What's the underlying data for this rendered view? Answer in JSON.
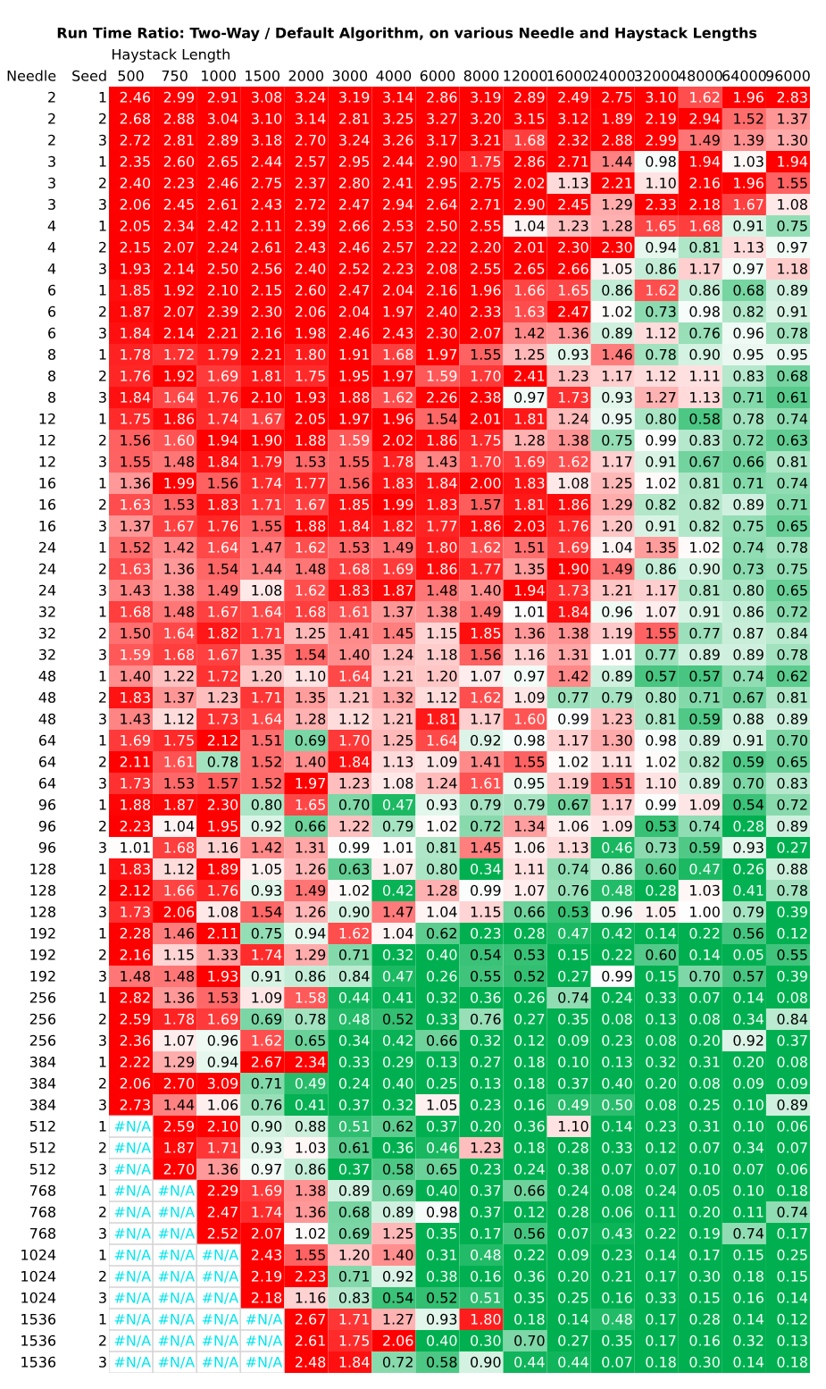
{
  "chart_data": {
    "type": "heatmap",
    "title": "Run Time Ratio: Two-Way / Default Algorithm, on various Needle and Haystack Lengths",
    "xlabel": "Haystack Length",
    "ylabel": "Needle",
    "y2label": "Seed",
    "categories": [
      "500",
      "750",
      "1000",
      "1500",
      "2000",
      "3000",
      "4000",
      "6000",
      "8000",
      "12000",
      "16000",
      "24000",
      "32000",
      "48000",
      "64000",
      "96000"
    ],
    "y_categories": [
      "2",
      "2",
      "2",
      "3",
      "3",
      "3",
      "4",
      "4",
      "4",
      "6",
      "6",
      "6",
      "8",
      "8",
      "8",
      "12",
      "12",
      "12",
      "16",
      "16",
      "16",
      "24",
      "24",
      "24",
      "32",
      "32",
      "32",
      "48",
      "48",
      "48",
      "64",
      "64",
      "64",
      "96",
      "96",
      "96",
      "128",
      "128",
      "128",
      "192",
      "192",
      "192",
      "256",
      "256",
      "256",
      "384",
      "384",
      "384",
      "512",
      "512",
      "512",
      "768",
      "768",
      "768",
      "1024",
      "1024",
      "1024",
      "1536",
      "1536",
      "1536"
    ],
    "y2_categories": [
      "1",
      "2",
      "3",
      "1",
      "2",
      "3",
      "1",
      "2",
      "3",
      "1",
      "2",
      "3",
      "1",
      "2",
      "3",
      "1",
      "2",
      "3",
      "1",
      "2",
      "3",
      "1",
      "2",
      "3",
      "1",
      "2",
      "3",
      "1",
      "2",
      "3",
      "1",
      "2",
      "3",
      "1",
      "2",
      "3",
      "1",
      "2",
      "3",
      "1",
      "2",
      "3",
      "1",
      "2",
      "3",
      "1",
      "2",
      "3",
      "1",
      "2",
      "3",
      "1",
      "2",
      "3",
      "1",
      "2",
      "3",
      "1",
      "2",
      "3"
    ],
    "cells": [
      [
        2.46,
        2.99,
        2.91,
        3.08,
        3.24,
        3.19,
        3.14,
        2.86,
        3.19,
        2.89,
        2.49,
        2.75,
        3.1,
        1.62,
        1.96,
        2.83
      ],
      [
        2.68,
        2.88,
        3.04,
        3.1,
        3.14,
        2.81,
        3.25,
        3.27,
        3.2,
        3.15,
        3.12,
        1.89,
        2.19,
        2.94,
        1.52,
        1.37
      ],
      [
        2.72,
        2.81,
        2.89,
        3.18,
        2.7,
        3.24,
        3.26,
        3.17,
        3.21,
        1.68,
        2.32,
        2.88,
        2.99,
        1.49,
        1.39,
        1.3
      ],
      [
        2.35,
        2.6,
        2.65,
        2.44,
        2.57,
        2.95,
        2.44,
        2.9,
        1.75,
        2.86,
        2.71,
        1.44,
        0.98,
        1.94,
        1.03,
        1.94
      ],
      [
        2.4,
        2.23,
        2.46,
        2.75,
        2.37,
        2.8,
        2.41,
        2.95,
        2.75,
        2.02,
        1.13,
        2.21,
        1.1,
        2.16,
        1.96,
        1.55
      ],
      [
        2.06,
        2.45,
        2.61,
        2.43,
        2.72,
        2.47,
        2.94,
        2.64,
        2.71,
        2.9,
        2.45,
        1.29,
        2.33,
        2.18,
        1.67,
        1.08
      ],
      [
        2.05,
        2.34,
        2.42,
        2.11,
        2.39,
        2.66,
        2.53,
        2.5,
        2.55,
        1.04,
        1.23,
        1.28,
        1.65,
        1.68,
        0.91,
        0.75
      ],
      [
        2.15,
        2.07,
        2.24,
        2.61,
        2.43,
        2.46,
        2.57,
        2.22,
        2.2,
        2.01,
        2.3,
        2.3,
        0.94,
        0.81,
        1.13,
        0.97
      ],
      [
        1.93,
        2.14,
        2.5,
        2.56,
        2.4,
        2.52,
        2.23,
        2.08,
        2.55,
        2.65,
        2.66,
        1.05,
        0.86,
        1.17,
        0.97,
        1.18
      ],
      [
        1.85,
        1.92,
        2.1,
        2.15,
        2.6,
        2.47,
        2.04,
        2.16,
        1.96,
        1.66,
        1.65,
        0.86,
        1.62,
        0.86,
        0.68,
        0.89
      ],
      [
        1.87,
        2.07,
        2.39,
        2.3,
        2.06,
        2.04,
        1.97,
        2.4,
        2.33,
        1.63,
        2.47,
        1.02,
        0.73,
        0.98,
        0.82,
        0.91
      ],
      [
        1.84,
        2.14,
        2.21,
        2.16,
        1.98,
        2.46,
        2.43,
        2.3,
        2.07,
        1.42,
        1.36,
        0.89,
        1.12,
        0.76,
        0.96,
        0.78
      ],
      [
        1.78,
        1.72,
        1.79,
        2.21,
        1.8,
        1.91,
        1.68,
        1.97,
        1.55,
        1.25,
        0.93,
        1.46,
        0.78,
        0.9,
        0.95,
        0.95
      ],
      [
        1.76,
        1.92,
        1.69,
        1.81,
        1.75,
        1.95,
        1.97,
        1.59,
        1.7,
        2.41,
        1.23,
        1.17,
        1.12,
        1.11,
        0.83,
        0.68
      ],
      [
        1.84,
        1.64,
        1.76,
        2.1,
        1.93,
        1.88,
        1.62,
        2.26,
        2.38,
        0.97,
        1.73,
        0.93,
        1.27,
        1.13,
        0.71,
        0.61
      ],
      [
        1.75,
        1.86,
        1.74,
        1.67,
        2.05,
        1.97,
        1.96,
        1.54,
        2.01,
        1.81,
        1.24,
        0.95,
        0.8,
        0.58,
        0.78,
        0.74
      ],
      [
        1.56,
        1.6,
        1.94,
        1.9,
        1.88,
        1.59,
        2.02,
        1.86,
        1.75,
        1.28,
        1.38,
        0.75,
        0.99,
        0.83,
        0.72,
        0.63
      ],
      [
        1.55,
        1.48,
        1.84,
        1.79,
        1.53,
        1.55,
        1.78,
        1.43,
        1.7,
        1.69,
        1.62,
        1.17,
        0.91,
        0.67,
        0.66,
        0.81
      ],
      [
        1.36,
        1.99,
        1.56,
        1.74,
        1.77,
        1.56,
        1.83,
        1.84,
        2.0,
        1.83,
        1.08,
        1.25,
        1.02,
        0.81,
        0.71,
        0.74
      ],
      [
        1.63,
        1.53,
        1.83,
        1.71,
        1.67,
        1.85,
        1.99,
        1.83,
        1.57,
        1.81,
        1.86,
        1.29,
        0.82,
        0.82,
        0.89,
        0.71
      ],
      [
        1.37,
        1.67,
        1.76,
        1.55,
        1.88,
        1.84,
        1.82,
        1.77,
        1.86,
        2.03,
        1.76,
        1.2,
        0.91,
        0.82,
        0.75,
        0.65
      ],
      [
        1.52,
        1.42,
        1.64,
        1.47,
        1.62,
        1.53,
        1.49,
        1.8,
        1.62,
        1.51,
        1.69,
        1.04,
        1.35,
        1.02,
        0.74,
        0.78
      ],
      [
        1.63,
        1.36,
        1.54,
        1.44,
        1.48,
        1.68,
        1.69,
        1.86,
        1.77,
        1.35,
        1.9,
        1.49,
        0.86,
        0.9,
        0.73,
        0.75
      ],
      [
        1.43,
        1.38,
        1.49,
        1.08,
        1.62,
        1.83,
        1.87,
        1.48,
        1.4,
        1.94,
        1.73,
        1.21,
        1.17,
        0.81,
        0.8,
        0.65
      ],
      [
        1.68,
        1.48,
        1.67,
        1.64,
        1.68,
        1.61,
        1.37,
        1.38,
        1.49,
        1.01,
        1.84,
        0.96,
        1.07,
        0.91,
        0.86,
        0.72
      ],
      [
        1.5,
        1.64,
        1.82,
        1.71,
        1.25,
        1.41,
        1.45,
        1.15,
        1.85,
        1.36,
        1.38,
        1.19,
        1.55,
        0.77,
        0.87,
        0.84
      ],
      [
        1.59,
        1.68,
        1.67,
        1.35,
        1.54,
        1.4,
        1.24,
        1.18,
        1.56,
        1.16,
        1.31,
        1.01,
        0.77,
        0.89,
        0.89,
        0.78
      ],
      [
        1.4,
        1.22,
        1.72,
        1.2,
        1.1,
        1.64,
        1.21,
        1.2,
        1.07,
        0.97,
        1.42,
        0.89,
        0.57,
        0.57,
        0.74,
        0.62
      ],
      [
        1.83,
        1.37,
        1.23,
        1.71,
        1.35,
        1.21,
        1.32,
        1.12,
        1.62,
        1.09,
        0.77,
        0.79,
        0.8,
        0.71,
        0.67,
        0.81
      ],
      [
        1.43,
        1.12,
        1.73,
        1.64,
        1.28,
        1.12,
        1.21,
        1.81,
        1.17,
        1.6,
        0.99,
        1.23,
        0.81,
        0.59,
        0.88,
        0.89
      ],
      [
        1.69,
        1.75,
        2.12,
        1.51,
        0.69,
        1.7,
        1.25,
        1.64,
        0.92,
        0.98,
        1.17,
        1.3,
        0.98,
        0.89,
        0.91,
        0.7
      ],
      [
        2.11,
        1.61,
        0.78,
        1.52,
        1.4,
        1.84,
        1.13,
        1.09,
        1.41,
        1.55,
        1.02,
        1.11,
        1.02,
        0.82,
        0.59,
        0.65
      ],
      [
        1.73,
        1.53,
        1.57,
        1.52,
        1.97,
        1.23,
        1.08,
        1.24,
        1.61,
        0.95,
        1.19,
        1.51,
        1.1,
        0.89,
        0.7,
        0.83
      ],
      [
        1.88,
        1.87,
        2.3,
        0.8,
        1.65,
        0.7,
        0.47,
        0.93,
        0.79,
        0.79,
        0.67,
        1.17,
        0.99,
        1.09,
        0.54,
        0.72
      ],
      [
        2.23,
        1.04,
        1.95,
        0.92,
        0.66,
        1.22,
        0.79,
        1.02,
        0.72,
        1.34,
        1.06,
        1.09,
        0.53,
        0.74,
        0.28,
        0.89
      ],
      [
        1.01,
        1.68,
        1.16,
        1.42,
        1.31,
        0.99,
        1.01,
        0.81,
        1.45,
        1.06,
        1.13,
        0.46,
        0.73,
        0.59,
        0.93,
        0.27
      ],
      [
        1.83,
        1.12,
        1.89,
        1.05,
        1.26,
        0.63,
        1.07,
        0.8,
        0.34,
        1.11,
        0.74,
        0.86,
        0.6,
        0.47,
        0.26,
        0.88
      ],
      [
        2.12,
        1.66,
        1.76,
        0.93,
        1.49,
        1.02,
        0.42,
        1.28,
        0.99,
        1.07,
        0.76,
        0.48,
        0.28,
        1.03,
        0.41,
        0.78
      ],
      [
        1.73,
        2.06,
        1.08,
        1.54,
        1.26,
        0.9,
        1.47,
        1.04,
        1.15,
        0.66,
        0.53,
        0.96,
        1.05,
        1.0,
        0.79,
        0.39
      ],
      [
        2.28,
        1.46,
        2.11,
        0.75,
        0.94,
        1.62,
        1.04,
        0.62,
        0.23,
        0.28,
        0.47,
        0.42,
        0.14,
        0.22,
        0.56,
        0.12
      ],
      [
        2.16,
        1.15,
        1.33,
        1.74,
        1.29,
        0.71,
        0.32,
        0.4,
        0.54,
        0.53,
        0.15,
        0.22,
        0.6,
        0.14,
        0.05,
        0.55
      ],
      [
        1.48,
        1.48,
        1.93,
        0.91,
        0.86,
        0.84,
        0.47,
        0.26,
        0.55,
        0.52,
        0.27,
        0.99,
        0.15,
        0.7,
        0.57,
        0.39
      ],
      [
        2.82,
        1.36,
        1.53,
        1.09,
        1.58,
        0.44,
        0.41,
        0.32,
        0.36,
        0.26,
        0.74,
        0.24,
        0.33,
        0.07,
        0.14,
        0.08
      ],
      [
        2.59,
        1.78,
        1.69,
        0.69,
        0.78,
        0.48,
        0.52,
        0.33,
        0.76,
        0.27,
        0.35,
        0.08,
        0.13,
        0.08,
        0.34,
        0.84
      ],
      [
        2.36,
        1.07,
        0.96,
        1.62,
        0.65,
        0.34,
        0.42,
        0.66,
        0.32,
        0.12,
        0.09,
        0.23,
        0.08,
        0.2,
        0.92,
        0.37
      ],
      [
        2.22,
        1.29,
        0.94,
        2.67,
        2.34,
        0.33,
        0.29,
        0.13,
        0.27,
        0.18,
        0.1,
        0.13,
        0.32,
        0.31,
        0.2,
        0.08
      ],
      [
        2.06,
        2.7,
        3.09,
        0.71,
        0.49,
        0.24,
        0.4,
        0.25,
        0.13,
        0.18,
        0.37,
        0.4,
        0.2,
        0.08,
        0.09,
        0.09
      ],
      [
        2.73,
        1.44,
        1.06,
        0.76,
        0.41,
        0.37,
        0.32,
        1.05,
        0.23,
        0.16,
        0.49,
        0.5,
        0.08,
        0.25,
        0.1,
        0.89
      ],
      [
        null,
        2.59,
        2.1,
        0.9,
        0.88,
        0.51,
        0.62,
        0.37,
        0.2,
        0.36,
        1.1,
        0.14,
        0.23,
        0.31,
        0.1,
        0.06
      ],
      [
        null,
        1.87,
        1.71,
        0.93,
        1.03,
        0.61,
        0.36,
        0.46,
        1.23,
        0.18,
        0.28,
        0.33,
        0.12,
        0.07,
        0.34,
        0.07
      ],
      [
        null,
        2.7,
        1.36,
        0.97,
        0.86,
        0.37,
        0.58,
        0.65,
        0.23,
        0.24,
        0.38,
        0.07,
        0.07,
        0.1,
        0.07,
        0.06
      ],
      [
        null,
        null,
        2.29,
        1.69,
        1.38,
        0.89,
        0.69,
        0.4,
        0.37,
        0.66,
        0.24,
        0.08,
        0.24,
        0.05,
        0.1,
        0.18
      ],
      [
        null,
        null,
        2.47,
        1.74,
        1.36,
        0.68,
        0.89,
        0.98,
        0.37,
        0.12,
        0.28,
        0.06,
        0.11,
        0.2,
        0.11,
        0.74
      ],
      [
        null,
        null,
        2.52,
        2.07,
        1.02,
        0.69,
        1.25,
        0.35,
        0.17,
        0.56,
        0.07,
        0.43,
        0.22,
        0.19,
        0.74,
        0.17
      ],
      [
        null,
        null,
        null,
        2.43,
        1.55,
        1.2,
        1.4,
        0.31,
        0.48,
        0.22,
        0.09,
        0.23,
        0.14,
        0.17,
        0.15,
        0.25
      ],
      [
        null,
        null,
        null,
        2.19,
        2.23,
        0.71,
        0.92,
        0.38,
        0.16,
        0.36,
        0.2,
        0.21,
        0.17,
        0.3,
        0.18,
        0.15
      ],
      [
        null,
        null,
        null,
        2.18,
        1.16,
        0.83,
        0.54,
        0.52,
        0.51,
        0.35,
        0.25,
        0.16,
        0.33,
        0.15,
        0.16,
        0.14
      ],
      [
        null,
        null,
        null,
        null,
        2.67,
        1.71,
        1.27,
        0.93,
        1.8,
        0.18,
        0.14,
        0.48,
        0.17,
        0.28,
        0.14,
        0.12
      ],
      [
        null,
        null,
        null,
        null,
        2.61,
        1.75,
        2.06,
        0.4,
        0.3,
        0.7,
        0.27,
        0.35,
        0.17,
        0.16,
        0.32,
        0.13
      ],
      [
        null,
        null,
        null,
        null,
        2.48,
        1.84,
        0.72,
        0.58,
        0.9,
        0.44,
        0.44,
        0.07,
        0.18,
        0.3,
        0.14,
        0.18
      ]
    ],
    "cell_labels": [
      [
        "2.46",
        "2.99",
        "2.91",
        "3.08",
        "3.24",
        "3.19",
        "3.14",
        "2.86",
        "3.19",
        "2.89",
        "2.49",
        "2.75",
        "3.10",
        "1.62",
        "1.96",
        "2.83"
      ],
      [
        "2.68",
        "2.88",
        "3.04",
        "3.10",
        "3.14",
        "2.81",
        "3.25",
        "3.27",
        "3.20",
        "3.15",
        "3.12",
        "1.89",
        "2.19",
        "2.94",
        "1.52",
        "1.37"
      ],
      [
        "2.72",
        "2.81",
        "2.89",
        "3.18",
        "2.70",
        "3.24",
        "3.26",
        "3.17",
        "3.21",
        "1.68",
        "2.32",
        "2.88",
        "2.99",
        "1.49",
        "1.39",
        "1.30"
      ],
      [
        "2.35",
        "2.60",
        "2.65",
        "2.44",
        "2.57",
        "2.95",
        "2.44",
        "2.90",
        "1.75",
        "2.86",
        "2.71",
        "1.44",
        "0.98",
        "1.94",
        "1.03",
        "1.94"
      ],
      [
        "2.40",
        "2.23",
        "2.46",
        "2.75",
        "2.37",
        "2.80",
        "2.41",
        "2.95",
        "2.75",
        "2.02",
        "1.13",
        "2.21",
        "1.10",
        "2.16",
        "1.96",
        "1.55"
      ],
      [
        "2.06",
        "2.45",
        "2.61",
        "2.43",
        "2.72",
        "2.47",
        "2.94",
        "2.64",
        "2.71",
        "2.90",
        "2.45",
        "1.29",
        "2.33",
        "2.18",
        "1.67",
        "1.08"
      ],
      [
        "2.05",
        "2.34",
        "2.42",
        "2.11",
        "2.39",
        "2.66",
        "2.53",
        "2.50",
        "2.55",
        "1.04",
        "1.23",
        "1.28",
        "1.65",
        "1.68",
        "0.91",
        "0.75"
      ],
      [
        "2.15",
        "2.07",
        "2.24",
        "2.61",
        "2.43",
        "2.46",
        "2.57",
        "2.22",
        "2.20",
        "2.01",
        "2.30",
        "2.30",
        "0.94",
        "0.81",
        "1.13",
        "0.97"
      ],
      [
        "1.93",
        "2.14",
        "2.50",
        "2.56",
        "2.40",
        "2.52",
        "2.23",
        "2.08",
        "2.55",
        "2.65",
        "2.66",
        "1.05",
        "0.86",
        "1.17",
        "0.97",
        "1.18"
      ],
      [
        "1.85",
        "1.92",
        "2.10",
        "2.15",
        "2.60",
        "2.47",
        "2.04",
        "2.16",
        "1.96",
        "1.66",
        "1.65",
        "0.86",
        "1.62",
        "0.86",
        "0.68",
        "0.89"
      ],
      [
        "1.87",
        "2.07",
        "2.39",
        "2.30",
        "2.06",
        "2.04",
        "1.97",
        "2.40",
        "2.33",
        "1.63",
        "2.47",
        "1.02",
        "0.73",
        "0.98",
        "0.82",
        "0.91"
      ],
      [
        "1.84",
        "2.14",
        "2.21",
        "2.16",
        "1.98",
        "2.46",
        "2.43",
        "2.30",
        "2.07",
        "1.42",
        "1.36",
        "0.89",
        "1.12",
        "0.76",
        "0.96",
        "0.78"
      ],
      [
        "1.78",
        "1.72",
        "1.79",
        "2.21",
        "1.80",
        "1.91",
        "1.68",
        "1.97",
        "1.55",
        "1.25",
        "0.93",
        "1.46",
        "0.78",
        "0.90",
        "0.95",
        "0.95"
      ],
      [
        "1.76",
        "1.92",
        "1.69",
        "1.81",
        "1.75",
        "1.95",
        "1.97",
        "1.59",
        "1.70",
        "2.41",
        "1.23",
        "1.17",
        "1.12",
        "1.11",
        "0.83",
        "0.68"
      ],
      [
        "1.84",
        "1.64",
        "1.76",
        "2.10",
        "1.93",
        "1.88",
        "1.62",
        "2.26",
        "2.38",
        "0.97",
        "1.73",
        "0.93",
        "1.27",
        "1.13",
        "0.71",
        "0.61"
      ],
      [
        "1.75",
        "1.86",
        "1.74",
        "1.67",
        "2.05",
        "1.97",
        "1.96",
        "1.54",
        "2.01",
        "1.81",
        "1.24",
        "0.95",
        "0.80",
        "0.58",
        "0.78",
        "0.74"
      ],
      [
        "1.56",
        "1.60",
        "1.94",
        "1.90",
        "1.88",
        "1.59",
        "2.02",
        "1.86",
        "1.75",
        "1.28",
        "1.38",
        "0.75",
        "0.99",
        "0.83",
        "0.72",
        "0.63"
      ],
      [
        "1.55",
        "1.48",
        "1.84",
        "1.79",
        "1.53",
        "1.55",
        "1.78",
        "1.43",
        "1.70",
        "1.69",
        "1.62",
        "1.17",
        "0.91",
        "0.67",
        "0.66",
        "0.81"
      ],
      [
        "1.36",
        "1.99",
        "1.56",
        "1.74",
        "1.77",
        "1.56",
        "1.83",
        "1.84",
        "2.00",
        "1.83",
        "1.08",
        "1.25",
        "1.02",
        "0.81",
        "0.71",
        "0.74"
      ],
      [
        "1.63",
        "1.53",
        "1.83",
        "1.71",
        "1.67",
        "1.85",
        "1.99",
        "1.83",
        "1.57",
        "1.81",
        "1.86",
        "1.29",
        "0.82",
        "0.82",
        "0.89",
        "0.71"
      ],
      [
        "1.37",
        "1.67",
        "1.76",
        "1.55",
        "1.88",
        "1.84",
        "1.82",
        "1.77",
        "1.86",
        "2.03",
        "1.76",
        "1.20",
        "0.91",
        "0.82",
        "0.75",
        "0.65"
      ],
      [
        "1.52",
        "1.42",
        "1.64",
        "1.47",
        "1.62",
        "1.53",
        "1.49",
        "1.80",
        "1.62",
        "1.51",
        "1.69",
        "1.04",
        "1.35",
        "1.02",
        "0.74",
        "0.78"
      ],
      [
        "1.63",
        "1.36",
        "1.54",
        "1.44",
        "1.48",
        "1.68",
        "1.69",
        "1.86",
        "1.77",
        "1.35",
        "1.90",
        "1.49",
        "0.86",
        "0.90",
        "0.73",
        "0.75"
      ],
      [
        "1.43",
        "1.38",
        "1.49",
        "1.08",
        "1.62",
        "1.83",
        "1.87",
        "1.48",
        "1.40",
        "1.94",
        "1.73",
        "1.21",
        "1.17",
        "0.81",
        "0.80",
        "0.65"
      ],
      [
        "1.68",
        "1.48",
        "1.67",
        "1.64",
        "1.68",
        "1.61",
        "1.37",
        "1.38",
        "1.49",
        "1.01",
        "1.84",
        "0.96",
        "1.07",
        "0.91",
        "0.86",
        "0.72"
      ],
      [
        "1.50",
        "1.64",
        "1.82",
        "1.71",
        "1.25",
        "1.41",
        "1.45",
        "1.15",
        "1.85",
        "1.36",
        "1.38",
        "1.19",
        "1.55",
        "0.77",
        "0.87",
        "0.84"
      ],
      [
        "1.59",
        "1.68",
        "1.67",
        "1.35",
        "1.54",
        "1.40",
        "1.24",
        "1.18",
        "1.56",
        "1.16",
        "1.31",
        "1.01",
        "0.77",
        "0.89",
        "0.89",
        "0.78"
      ],
      [
        "1.40",
        "1.22",
        "1.72",
        "1.20",
        "1.10",
        "1.64",
        "1.21",
        "1.20",
        "1.07",
        "0.97",
        "1.42",
        "0.89",
        "0.57",
        "0.57",
        "0.74",
        "0.62"
      ],
      [
        "1.83",
        "1.37",
        "1.23",
        "1.71",
        "1.35",
        "1.21",
        "1.32",
        "1.12",
        "1.62",
        "1.09",
        "0.77",
        "0.79",
        "0.80",
        "0.71",
        "0.67",
        "0.81"
      ],
      [
        "1.43",
        "1.12",
        "1.73",
        "1.64",
        "1.28",
        "1.12",
        "1.21",
        "1.81",
        "1.17",
        "1.60",
        "0.99",
        "1.23",
        "0.81",
        "0.59",
        "0.88",
        "0.89"
      ],
      [
        "1.69",
        "1.75",
        "2.12",
        "1.51",
        "0.69",
        "1.70",
        "1.25",
        "1.64",
        "0.92",
        "0.98",
        "1.17",
        "1.30",
        "0.98",
        "0.89",
        "0.91",
        "0.70"
      ],
      [
        "2.11",
        "1.61",
        "0.78",
        "1.52",
        "1.40",
        "1.84",
        "1.13",
        "1.09",
        "1.41",
        "1.55",
        "1.02",
        "1.11",
        "1.02",
        "0.82",
        "0.59",
        "0.65"
      ],
      [
        "1.73",
        "1.53",
        "1.57",
        "1.52",
        "1.97",
        "1.23",
        "1.08",
        "1.24",
        "1.61",
        "0.95",
        "1.19",
        "1.51",
        "1.10",
        "0.89",
        "0.70",
        "0.83"
      ],
      [
        "1.88",
        "1.87",
        "2.30",
        "0.80",
        "1.65",
        "0.70",
        "0.47",
        "0.93",
        "0.79",
        "0.79",
        "0.67",
        "1.17",
        "0.99",
        "1.09",
        "0.54",
        "0.72"
      ],
      [
        "2.23",
        "1.04",
        "1.95",
        "0.92",
        "0.66",
        "1.22",
        "0.79",
        "1.02",
        "0.72",
        "1.34",
        "1.06",
        "1.09",
        "0.53",
        "0.74",
        "0.28",
        "0.89"
      ],
      [
        "1.01",
        "1.68",
        "1.16",
        "1.42",
        "1.31",
        "0.99",
        "1.01",
        "0.81",
        "1.45",
        "1.06",
        "1.13",
        "0.46",
        "0.73",
        "0.59",
        "0.93",
        "0.27"
      ],
      [
        "1.83",
        "1.12",
        "1.89",
        "1.05",
        "1.26",
        "0.63",
        "1.07",
        "0.80",
        "0.34",
        "1.11",
        "0.74",
        "0.86",
        "0.60",
        "0.47",
        "0.26",
        "0.88"
      ],
      [
        "2.12",
        "1.66",
        "1.76",
        "0.93",
        "1.49",
        "1.02",
        "0.42",
        "1.28",
        "0.99",
        "1.07",
        "0.76",
        "0.48",
        "0.28",
        "1.03",
        "0.41",
        "0.78"
      ],
      [
        "1.73",
        "2.06",
        "1.08",
        "1.54",
        "1.26",
        "0.90",
        "1.47",
        "1.04",
        "1.15",
        "0.66",
        "0.53",
        "0.96",
        "1.05",
        "1.00",
        "0.79",
        "0.39"
      ],
      [
        "2.28",
        "1.46",
        "2.11",
        "0.75",
        "0.94",
        "1.62",
        "1.04",
        "0.62",
        "0.23",
        "0.28",
        "0.47",
        "0.42",
        "0.14",
        "0.22",
        "0.56",
        "0.12"
      ],
      [
        "2.16",
        "1.15",
        "1.33",
        "1.74",
        "1.29",
        "0.71",
        "0.32",
        "0.40",
        "0.54",
        "0.53",
        "0.15",
        "0.22",
        "0.60",
        "0.14",
        "0.05",
        "0.55"
      ],
      [
        "1.48",
        "1.48",
        "1.93",
        "0.91",
        "0.86",
        "0.84",
        "0.47",
        "0.26",
        "0.55",
        "0.52",
        "0.27",
        "0.99",
        "0.15",
        "0.70",
        "0.57",
        "0.39"
      ],
      [
        "2.82",
        "1.36",
        "1.53",
        "1.09",
        "1.58",
        "0.44",
        "0.41",
        "0.32",
        "0.36",
        "0.26",
        "0.74",
        "0.24",
        "0.33",
        "0.07",
        "0.14",
        "0.08"
      ],
      [
        "2.59",
        "1.78",
        "1.69",
        "0.69",
        "0.78",
        "0.48",
        "0.52",
        "0.33",
        "0.76",
        "0.27",
        "0.35",
        "0.08",
        "0.13",
        "0.08",
        "0.34",
        "0.84"
      ],
      [
        "2.36",
        "1.07",
        "0.96",
        "1.62",
        "0.65",
        "0.34",
        "0.42",
        "0.66",
        "0.32",
        "0.12",
        "0.09",
        "0.23",
        "0.08",
        "0.20",
        "0.92",
        "0.37"
      ],
      [
        "2.22",
        "1.29",
        "0.94",
        "2.67",
        "2.34",
        "0.33",
        "0.29",
        "0.13",
        "0.27",
        "0.18",
        "0.10",
        "0.13",
        "0.32",
        "0.31",
        "0.20",
        "0.08"
      ],
      [
        "2.06",
        "2.70",
        "3.09",
        "0.71",
        "0.49",
        "0.24",
        "0.40",
        "0.25",
        "0.13",
        "0.18",
        "0.37",
        "0.40",
        "0.20",
        "0.08",
        "0.09",
        "0.09"
      ],
      [
        "2.73",
        "1.44",
        "1.06",
        "0.76",
        "0.41",
        "0.37",
        "0.32",
        "1.05",
        "0.23",
        "0.16",
        "0.49",
        "0.50",
        "0.08",
        "0.25",
        "0.10",
        "0.89"
      ],
      [
        "#N/A",
        "2.59",
        "2.10",
        "0.90",
        "0.88",
        "0.51",
        "0.62",
        "0.37",
        "0.20",
        "0.36",
        "1.10",
        "0.14",
        "0.23",
        "0.31",
        "0.10",
        "0.06"
      ],
      [
        "#N/A",
        "1.87",
        "1.71",
        "0.93",
        "1.03",
        "0.61",
        "0.36",
        "0.46",
        "1.23",
        "0.18",
        "0.28",
        "0.33",
        "0.12",
        "0.07",
        "0.34",
        "0.07"
      ],
      [
        "#N/A",
        "2.70",
        "1.36",
        "0.97",
        "0.86",
        "0.37",
        "0.58",
        "0.65",
        "0.23",
        "0.24",
        "0.38",
        "0.07",
        "0.07",
        "0.10",
        "0.07",
        "0.06"
      ],
      [
        "#N/A",
        "#N/A",
        "2.29",
        "1.69",
        "1.38",
        "0.89",
        "0.69",
        "0.40",
        "0.37",
        "0.66",
        "0.24",
        "0.08",
        "0.24",
        "0.05",
        "0.10",
        "0.18"
      ],
      [
        "#N/A",
        "#N/A",
        "2.47",
        "1.74",
        "1.36",
        "0.68",
        "0.89",
        "0.98",
        "0.37",
        "0.12",
        "0.28",
        "0.06",
        "0.11",
        "0.20",
        "0.11",
        "0.74"
      ],
      [
        "#N/A",
        "#N/A",
        "2.52",
        "2.07",
        "1.02",
        "0.69",
        "1.25",
        "0.35",
        "0.17",
        "0.56",
        "0.07",
        "0.43",
        "0.22",
        "0.19",
        "0.74",
        "0.17"
      ],
      [
        "#N/A",
        "#N/A",
        "#N/A",
        "2.43",
        "1.55",
        "1.20",
        "1.40",
        "0.31",
        "0.48",
        "0.22",
        "0.09",
        "0.23",
        "0.14",
        "0.17",
        "0.15",
        "0.25"
      ],
      [
        "#N/A",
        "#N/A",
        "#N/A",
        "2.19",
        "2.23",
        "0.71",
        "0.92",
        "0.38",
        "0.16",
        "0.36",
        "0.20",
        "0.21",
        "0.17",
        "0.30",
        "0.18",
        "0.15"
      ],
      [
        "#N/A",
        "#N/A",
        "#N/A",
        "2.18",
        "1.16",
        "0.83",
        "0.54",
        "0.52",
        "0.51",
        "0.35",
        "0.25",
        "0.16",
        "0.33",
        "0.15",
        "0.16",
        "0.14"
      ],
      [
        "#N/A",
        "#N/A",
        "#N/A",
        "#N/A",
        "2.67",
        "1.71",
        "1.27",
        "0.93",
        "1.80",
        "0.18",
        "0.14",
        "0.48",
        "0.17",
        "0.28",
        "0.14",
        "0.12"
      ],
      [
        "#N/A",
        "#N/A",
        "#N/A",
        "#N/A",
        "2.61",
        "1.75",
        "2.06",
        "0.40",
        "0.30",
        "0.70",
        "0.27",
        "0.35",
        "0.17",
        "0.16",
        "0.32",
        "0.13"
      ],
      [
        "#N/A",
        "#N/A",
        "#N/A",
        "#N/A",
        "2.48",
        "1.84",
        "0.72",
        "0.58",
        "0.90",
        "0.44",
        "0.44",
        "0.07",
        "0.18",
        "0.30",
        "0.14",
        "0.18"
      ]
    ]
  }
}
